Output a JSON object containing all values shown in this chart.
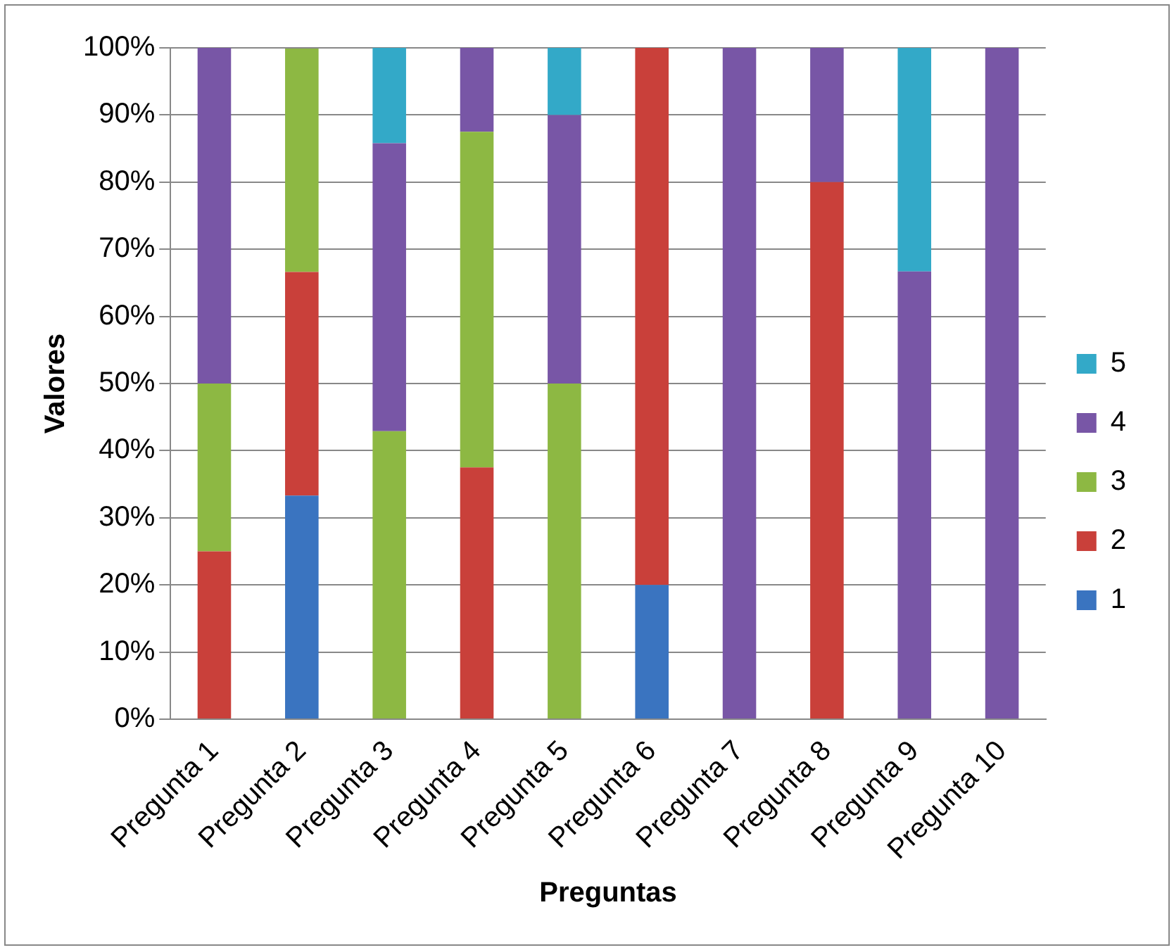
{
  "chart_data": {
    "type": "bar",
    "stacked": true,
    "xlabel": "Preguntas",
    "ylabel": "Valores",
    "categories": [
      "Pregunta 1",
      "Pregunta 2",
      "Pregunta 3",
      "Pregunta 4",
      "Pregunta 5",
      "Pregunta 6",
      "Pregunta 7",
      "Pregunta 8",
      "Pregunta 9",
      "Pregunta 10"
    ],
    "series": [
      {
        "name": "1",
        "color": "#3a74c0",
        "values": [
          0,
          33.3,
          0,
          0,
          0,
          20,
          0,
          0,
          0,
          0
        ]
      },
      {
        "name": "2",
        "color": "#c9403a",
        "values": [
          25,
          33.3,
          0,
          37.5,
          0,
          80,
          0,
          80,
          0,
          0
        ]
      },
      {
        "name": "3",
        "color": "#8db843",
        "values": [
          25,
          33.3,
          42.9,
          50,
          50,
          0,
          0,
          0,
          0,
          0
        ]
      },
      {
        "name": "4",
        "color": "#7856a6",
        "values": [
          50,
          0,
          42.9,
          12.5,
          40,
          0,
          100,
          20,
          66.7,
          100
        ]
      },
      {
        "name": "5",
        "color": "#33a9c8",
        "values": [
          0,
          0,
          14.3,
          0,
          10,
          0,
          0,
          0,
          33.3,
          0
        ]
      }
    ],
    "ylim": [
      0,
      100
    ],
    "yticks": [
      {
        "value": 0,
        "label": "0%"
      },
      {
        "value": 10,
        "label": "10%"
      },
      {
        "value": 20,
        "label": "20%"
      },
      {
        "value": 30,
        "label": "30%"
      },
      {
        "value": 40,
        "label": "40%"
      },
      {
        "value": 50,
        "label": "50%"
      },
      {
        "value": 60,
        "label": "60%"
      },
      {
        "value": 70,
        "label": "70%"
      },
      {
        "value": 80,
        "label": "80%"
      },
      {
        "value": 90,
        "label": "90%"
      },
      {
        "value": 100,
        "label": "100%"
      }
    ],
    "grid": "y",
    "legend": "right"
  }
}
